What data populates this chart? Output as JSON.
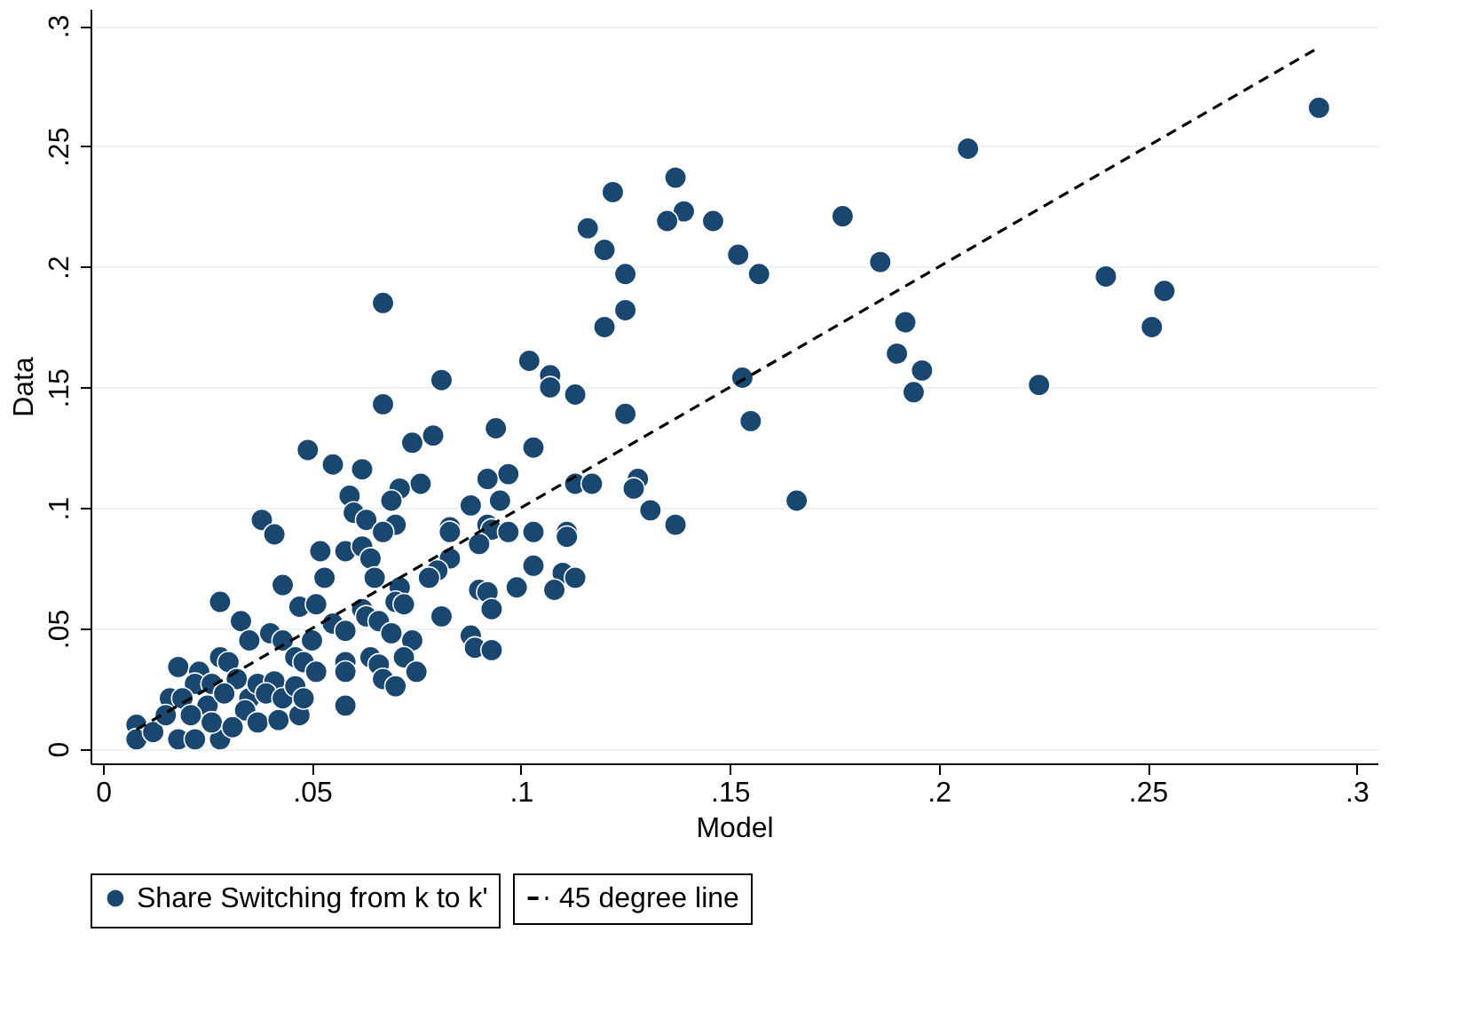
{
  "chart_data": {
    "type": "scatter",
    "xlabel": "Model",
    "ylabel": "Data",
    "xlim": [
      -0.003,
      0.305
    ],
    "ylim": [
      -0.006,
      0.307
    ],
    "xticks": [
      0,
      {
        "value": 0.05,
        "label": ".05"
      },
      {
        "value": 0.1,
        "label": ".1"
      },
      {
        "value": 0.15,
        "label": ".15"
      },
      {
        "value": 0.2,
        "label": ".2"
      },
      {
        "value": 0.25,
        "label": ".25"
      },
      {
        "value": 0.3,
        "label": ".3"
      }
    ],
    "yticks": [
      0,
      {
        "value": 0.05,
        "label": ".05"
      },
      {
        "value": 0.1,
        "label": ".1"
      },
      {
        "value": 0.15,
        "label": ".15"
      },
      {
        "value": 0.2,
        "label": ".2"
      },
      {
        "value": 0.25,
        "label": ".25"
      },
      {
        "value": 0.3,
        "label": ".3"
      }
    ],
    "grid": "y",
    "legend": "bottom",
    "marker": "circle",
    "series": [
      {
        "name": "Share Switching from k to k'",
        "color": "#1a476f",
        "x": [
          0.207,
          0.291,
          0.177,
          0.186,
          0.192,
          0.24,
          0.254,
          0.251,
          0.19,
          0.196,
          0.194,
          0.224,
          0.166,
          0.153,
          0.155,
          0.152,
          0.157,
          0.137,
          0.122,
          0.139,
          0.135,
          0.146,
          0.116,
          0.12,
          0.125,
          0.125,
          0.12,
          0.067,
          0.102,
          0.107,
          0.107,
          0.113,
          0.081,
          0.067,
          0.125,
          0.094,
          0.079,
          0.074,
          0.103,
          0.049,
          0.055,
          0.062,
          0.097,
          0.092,
          0.076,
          0.071,
          0.069,
          0.059,
          0.095,
          0.088,
          0.113,
          0.117,
          0.128,
          0.127,
          0.131,
          0.137,
          0.06,
          0.063,
          0.07,
          0.067,
          0.083,
          0.083,
          0.092,
          0.093,
          0.097,
          0.103,
          0.111,
          0.111,
          0.09,
          0.052,
          0.058,
          0.062,
          0.064,
          0.083,
          0.08,
          0.078,
          0.103,
          0.11,
          0.113,
          0.053,
          0.099,
          0.108,
          0.09,
          0.092,
          0.065,
          0.071,
          0.038,
          0.041,
          0.043,
          0.093,
          0.028,
          0.033,
          0.047,
          0.051,
          0.035,
          0.04,
          0.043,
          0.046,
          0.05,
          0.048,
          0.051,
          0.055,
          0.058,
          0.062,
          0.063,
          0.066,
          0.07,
          0.072,
          0.081,
          0.069,
          0.074,
          0.058,
          0.058,
          0.064,
          0.066,
          0.067,
          0.07,
          0.072,
          0.075,
          0.058,
          0.088,
          0.089,
          0.093,
          0.018,
          0.016,
          0.008,
          0.008,
          0.012,
          0.018,
          0.022,
          0.028,
          0.028,
          0.03,
          0.023,
          0.022,
          0.026,
          0.032,
          0.019,
          0.025,
          0.029,
          0.035,
          0.037,
          0.034,
          0.026,
          0.021,
          0.015,
          0.031,
          0.037,
          0.042,
          0.047,
          0.041,
          0.039,
          0.043,
          0.046,
          0.048
        ],
        "values": [
          0.249,
          0.266,
          0.221,
          0.202,
          0.177,
          0.196,
          0.19,
          0.175,
          0.164,
          0.157,
          0.148,
          0.151,
          0.103,
          0.154,
          0.136,
          0.205,
          0.197,
          0.237,
          0.231,
          0.223,
          0.219,
          0.219,
          0.216,
          0.207,
          0.197,
          0.182,
          0.175,
          0.185,
          0.161,
          0.155,
          0.15,
          0.147,
          0.153,
          0.143,
          0.139,
          0.133,
          0.13,
          0.127,
          0.125,
          0.124,
          0.118,
          0.116,
          0.114,
          0.112,
          0.11,
          0.108,
          0.103,
          0.105,
          0.103,
          0.101,
          0.11,
          0.11,
          0.112,
          0.108,
          0.099,
          0.093,
          0.098,
          0.095,
          0.093,
          0.09,
          0.092,
          0.09,
          0.093,
          0.091,
          0.09,
          0.09,
          0.09,
          0.088,
          0.085,
          0.082,
          0.082,
          0.084,
          0.079,
          0.079,
          0.074,
          0.071,
          0.076,
          0.073,
          0.071,
          0.071,
          0.067,
          0.066,
          0.066,
          0.065,
          0.071,
          0.067,
          0.095,
          0.089,
          0.068,
          0.058,
          0.061,
          0.053,
          0.059,
          0.06,
          0.045,
          0.048,
          0.045,
          0.038,
          0.045,
          0.036,
          0.032,
          0.052,
          0.049,
          0.058,
          0.055,
          0.053,
          0.061,
          0.06,
          0.055,
          0.048,
          0.045,
          0.036,
          0.032,
          0.038,
          0.035,
          0.029,
          0.026,
          0.038,
          0.032,
          0.018,
          0.047,
          0.042,
          0.041,
          0.034,
          0.021,
          0.01,
          0.004,
          0.007,
          0.004,
          0.004,
          0.004,
          0.038,
          0.036,
          0.032,
          0.027,
          0.027,
          0.029,
          0.021,
          0.018,
          0.023,
          0.021,
          0.027,
          0.016,
          0.011,
          0.014,
          0.014,
          0.009,
          0.011,
          0.012,
          0.014,
          0.028,
          0.023,
          0.021,
          0.026,
          0.021
        ]
      },
      {
        "name": "45 degree line",
        "type": "line",
        "color": "#000000",
        "line_style": "dashed",
        "marker": "none",
        "x": [
          0.008,
          0.29
        ],
        "values": [
          0.008,
          0.29
        ]
      }
    ]
  }
}
